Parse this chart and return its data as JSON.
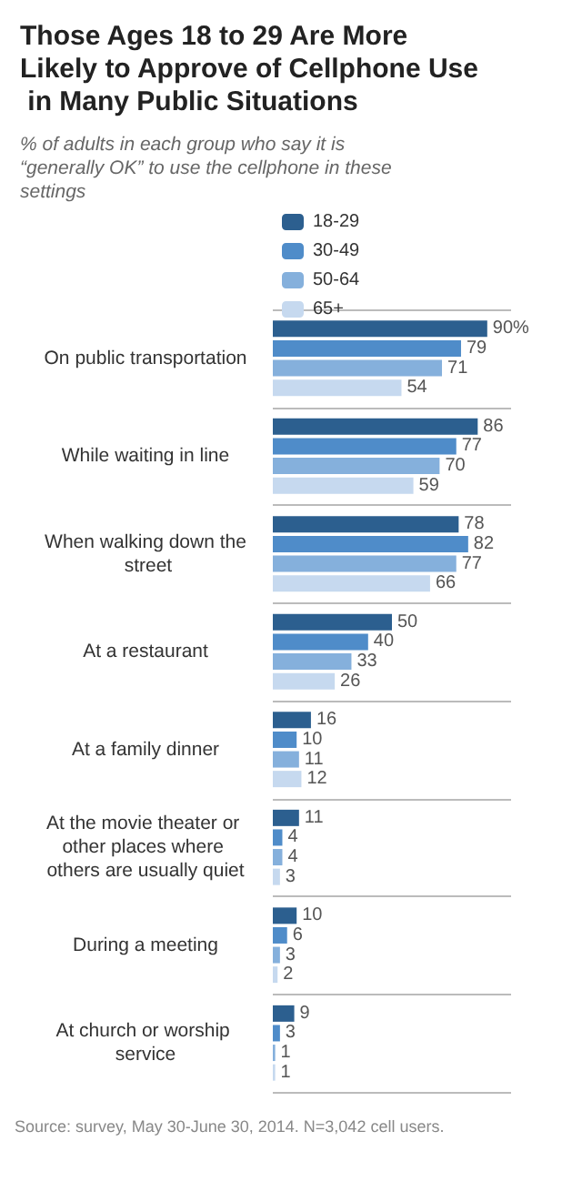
{
  "chart_data": {
    "type": "bar",
    "orientation": "horizontal",
    "title": "Those Ages 18 to 29 Are More Likely to Approve of Cellphone Use in Many Public Situations",
    "subtitle": "% of adults in each group who say it is “generally OK” to use the cellphone in these settings",
    "categories": [
      "On public transportation",
      "While waiting in line",
      "When walking down the street",
      "At a restaurant",
      "At a family dinner",
      "At the movie theater or other places where others are usually quiet",
      "During a meeting",
      "At church or worship service"
    ],
    "series": [
      {
        "name": "18-29",
        "color": "#2c5f8f",
        "values": [
          90,
          86,
          78,
          50,
          16,
          11,
          10,
          9
        ],
        "value_labels": [
          "90%",
          "86",
          "78",
          "50",
          "16",
          "11",
          "10",
          "9"
        ]
      },
      {
        "name": "30-49",
        "color": "#4f8cc9",
        "values": [
          79,
          77,
          82,
          40,
          10,
          4,
          6,
          3
        ],
        "value_labels": [
          "79",
          "77",
          "82",
          "40",
          "10",
          "4",
          "6",
          "3"
        ]
      },
      {
        "name": "50-64",
        "color": "#85b0dc",
        "values": [
          71,
          70,
          77,
          33,
          11,
          4,
          3,
          1
        ],
        "value_labels": [
          "71",
          "70",
          "77",
          "33",
          "11",
          "4",
          "3",
          "1"
        ]
      },
      {
        "name": "65+",
        "color": "#c6d9ef",
        "values": [
          54,
          59,
          66,
          26,
          12,
          3,
          2,
          1
        ],
        "value_labels": [
          "54",
          "59",
          "66",
          "26",
          "12",
          "3",
          "2",
          "1"
        ]
      }
    ],
    "legend": "top",
    "grid": "y",
    "annotations": [
      "Source: survey, May 30-June 30, 2014. N=3,042 cell users."
    ]
  }
}
